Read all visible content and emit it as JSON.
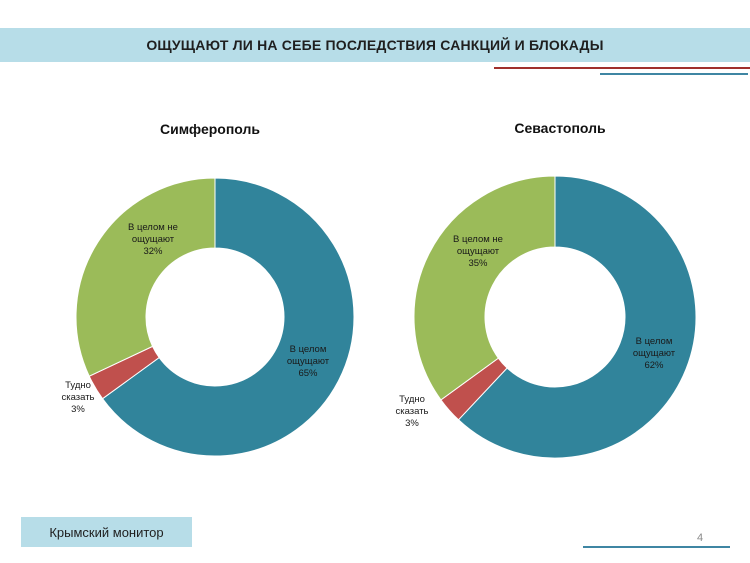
{
  "header": {
    "title": "ОЩУЩАЮТ ЛИ НА СЕБЕ ПОСЛЕДСТВИЯ САНКЦИЙ И БЛОКАДЫ"
  },
  "footer": {
    "brand": "Крымский монитор",
    "page_number": "4"
  },
  "colors": {
    "blue": "#31849b",
    "red": "#c0504d",
    "green": "#9bbb59"
  },
  "chart_data": [
    {
      "type": "pie",
      "title": "Симферополь",
      "slices": [
        {
          "label_lines": [
            "В целом",
            "ощущают",
            "65%"
          ],
          "value": 65,
          "color": "#31849b"
        },
        {
          "label_lines": [
            "Тудно",
            "сказать",
            "3%"
          ],
          "value": 3,
          "color": "#c0504d"
        },
        {
          "label_lines": [
            "В целом не",
            "ощущают",
            "32%"
          ],
          "value": 32,
          "color": "#9bbb59"
        }
      ]
    },
    {
      "type": "pie",
      "title": "Севастополь",
      "slices": [
        {
          "label_lines": [
            "В целом",
            "ощущают",
            "62%"
          ],
          "value": 62,
          "color": "#31849b"
        },
        {
          "label_lines": [
            "Тудно",
            "сказать",
            "3%"
          ],
          "value": 3,
          "color": "#c0504d"
        },
        {
          "label_lines": [
            "В целом не",
            "ощущают",
            "35%"
          ],
          "value": 35,
          "color": "#9bbb59"
        }
      ]
    }
  ]
}
